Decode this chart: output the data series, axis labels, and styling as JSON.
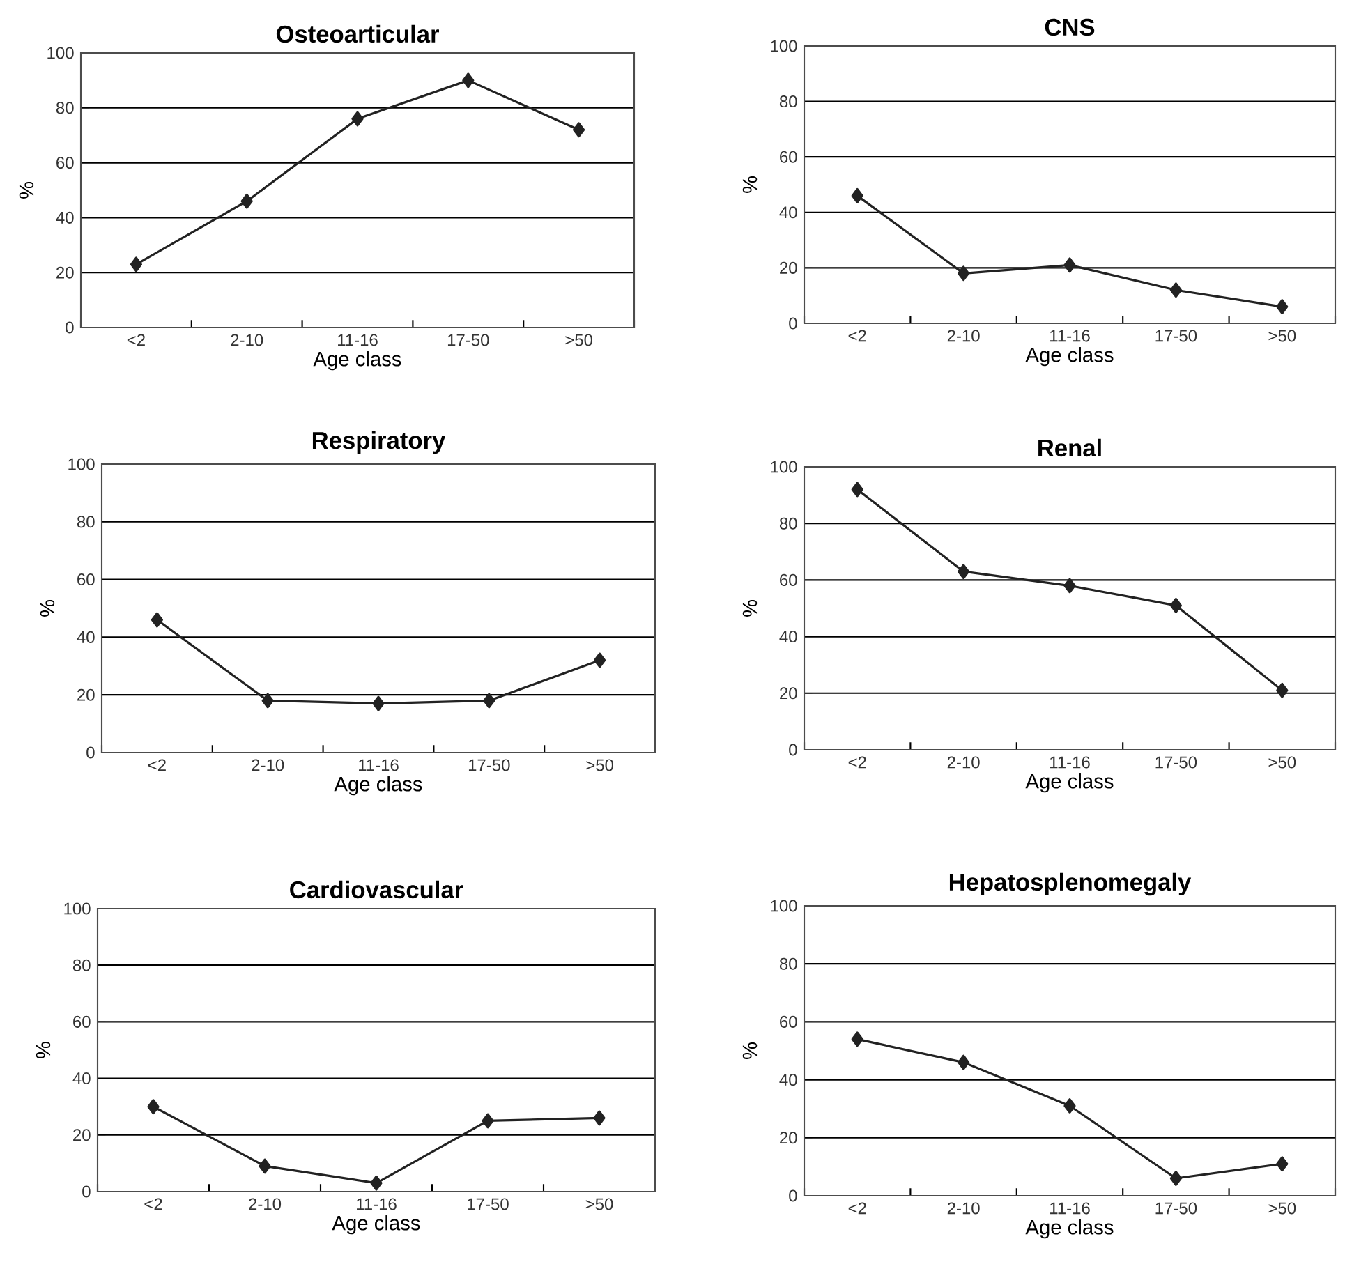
{
  "chart_data": [
    {
      "type": "line",
      "title": "Osteoarticular",
      "xlabel": "Age class",
      "ylabel": "%",
      "categories": [
        "<2",
        "2-10",
        "11-16",
        "17-50",
        ">50"
      ],
      "series": [
        {
          "color": "#222222",
          "values": [
            23,
            46,
            76,
            90,
            72
          ]
        }
      ],
      "ylim": [
        0,
        100
      ],
      "yticks": [
        0,
        20,
        40,
        60,
        80,
        100
      ],
      "grid": "y",
      "marker": "diamond",
      "line_style": "solid"
    },
    {
      "type": "line",
      "title": "CNS",
      "xlabel": "Age class",
      "ylabel": "%",
      "categories": [
        "<2",
        "2-10",
        "11-16",
        "17-50",
        ">50"
      ],
      "series": [
        {
          "color": "#222222",
          "values": [
            46,
            18,
            21,
            12,
            6
          ]
        }
      ],
      "ylim": [
        0,
        100
      ],
      "yticks": [
        0,
        20,
        40,
        60,
        80,
        100
      ],
      "grid": "y",
      "marker": "diamond",
      "line_style": "solid"
    },
    {
      "type": "line",
      "title": "Respiratory",
      "xlabel": "Age class",
      "ylabel": "%",
      "categories": [
        "<2",
        "2-10",
        "11-16",
        "17-50",
        ">50"
      ],
      "series": [
        {
          "color": "#222222",
          "values": [
            46,
            18,
            17,
            18,
            32
          ]
        }
      ],
      "ylim": [
        0,
        100
      ],
      "yticks": [
        0,
        20,
        40,
        60,
        80,
        100
      ],
      "grid": "y",
      "marker": "diamond",
      "line_style": "solid"
    },
    {
      "type": "line",
      "title": "Renal",
      "xlabel": "Age class",
      "ylabel": "%",
      "categories": [
        "<2",
        "2-10",
        "11-16",
        "17-50",
        ">50"
      ],
      "series": [
        {
          "color": "#222222",
          "values": [
            92,
            63,
            58,
            51,
            21
          ]
        }
      ],
      "ylim": [
        0,
        100
      ],
      "yticks": [
        0,
        20,
        40,
        60,
        80,
        100
      ],
      "grid": "y",
      "marker": "diamond",
      "line_style": "solid"
    },
    {
      "type": "line",
      "title": "Cardiovascular",
      "xlabel": "Age class",
      "ylabel": "%",
      "categories": [
        "<2",
        "2-10",
        "11-16",
        "17-50",
        ">50"
      ],
      "series": [
        {
          "color": "#222222",
          "values": [
            30,
            9,
            3,
            25,
            26
          ]
        }
      ],
      "ylim": [
        0,
        100
      ],
      "yticks": [
        0,
        20,
        40,
        60,
        80,
        100
      ],
      "grid": "y",
      "marker": "diamond",
      "line_style": "solid"
    },
    {
      "type": "line",
      "title": "Hepatosplenomegaly",
      "xlabel": "Age class",
      "ylabel": "%",
      "categories": [
        "<2",
        "2-10",
        "11-16",
        "17-50",
        ">50"
      ],
      "series": [
        {
          "color": "#222222",
          "values": [
            54,
            46,
            31,
            6,
            11
          ]
        }
      ],
      "ylim": [
        0,
        100
      ],
      "yticks": [
        0,
        20,
        40,
        60,
        80,
        100
      ],
      "grid": "y",
      "marker": "diamond",
      "line_style": "solid"
    }
  ]
}
